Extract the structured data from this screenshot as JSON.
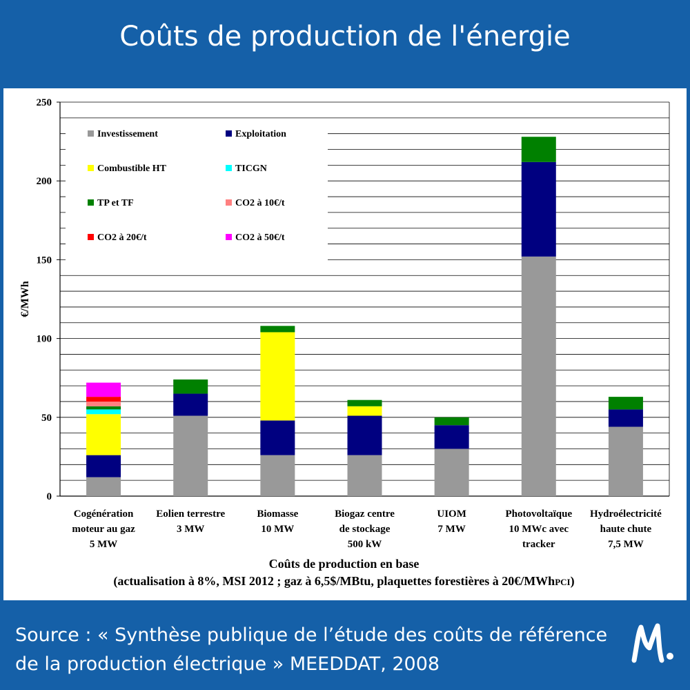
{
  "title": "Coûts de production de l'énergie",
  "source": {
    "line1": "Source : « Synthèse publique de l’étude des coûts de référence",
    "line2": "de la production électrique » MEEDDAT, 2008"
  },
  "logo_icon": "m-logo-icon",
  "chart_data": {
    "type": "bar",
    "stacked": true,
    "title": "",
    "xlabel": "Coûts de production en base",
    "xlabel_note": "(actualisation à 8%, MSI 2012 ; gaz à 6,5$/MBtu, plaquettes forestières à 20€/MWh",
    "xlabel_note_suffix": "PCI",
    "xlabel_note_end": ")",
    "ylabel": "€/MWh",
    "ylim": [
      0,
      250
    ],
    "yticks": [
      "0",
      "50",
      "100",
      "150",
      "200",
      "250"
    ],
    "grid": true,
    "legend_position": "top-left",
    "categories": [
      [
        "Cogénération",
        "moteur au gaz",
        "5 MW"
      ],
      [
        "Eolien terrestre",
        "3 MW"
      ],
      [
        "Biomasse",
        "10 MW"
      ],
      [
        "Biogaz centre",
        "de stockage",
        "500 kW"
      ],
      [
        "UIOM",
        "7 MW"
      ],
      [
        "Photovoltaïque",
        "10 MWc avec",
        "tracker"
      ],
      [
        "Hydroélectricité",
        "haute chute",
        "7,5 MW"
      ]
    ],
    "series": [
      {
        "name": "Investissement",
        "color": "#999999",
        "values": [
          12,
          51,
          26,
          26,
          30,
          152,
          44
        ]
      },
      {
        "name": "Exploitation",
        "color": "#000080",
        "values": [
          14,
          14,
          22,
          25,
          15,
          60,
          11
        ]
      },
      {
        "name": "Combustible HT",
        "color": "#ffff00",
        "values": [
          26,
          0,
          56,
          6,
          0,
          0,
          0
        ]
      },
      {
        "name": "TICGN",
        "color": "#00ffff",
        "values": [
          3,
          0,
          0,
          0,
          0,
          0,
          0
        ]
      },
      {
        "name": "TP et TF",
        "color": "#008000",
        "values": [
          2,
          9,
          4,
          4,
          5,
          16,
          8
        ]
      },
      {
        "name": "CO2 à 10€/t",
        "color": "#ff8080",
        "values": [
          3,
          0,
          0,
          0,
          0,
          0,
          0
        ]
      },
      {
        "name": "CO2 à 20€/t",
        "color": "#ff0000",
        "values": [
          3,
          0,
          0,
          0,
          0,
          0,
          0
        ]
      },
      {
        "name": "CO2 à 50€/t",
        "color": "#ff00ff",
        "values": [
          9,
          0,
          0,
          0,
          0,
          0,
          0
        ]
      }
    ]
  }
}
